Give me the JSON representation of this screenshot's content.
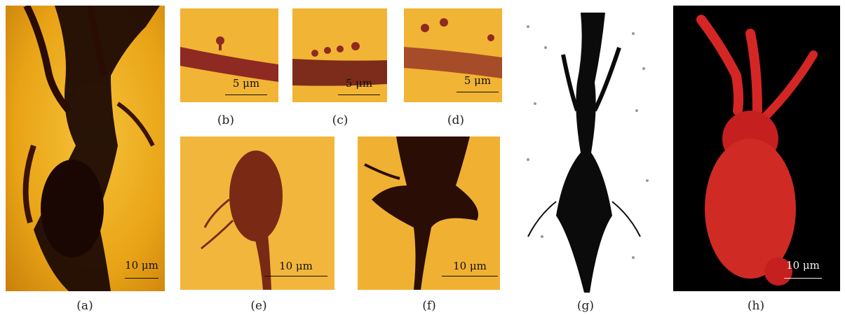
{
  "figure": {
    "panels": [
      {
        "id": "a",
        "caption": "(a)",
        "scale_label": "10 μm",
        "image": "Golgi-stained neuron, dark cell with branching dendrites on amber background"
      },
      {
        "id": "b",
        "caption": "(b)",
        "scale_label": "5 μm",
        "image": "Dendrite segment with spines"
      },
      {
        "id": "c",
        "caption": "(c)",
        "scale_label": "5 μm",
        "image": "Dendrite segment with spines"
      },
      {
        "id": "d",
        "caption": "(d)",
        "scale_label": "5 μm",
        "image": "Dendrite segment with spines"
      },
      {
        "id": "e",
        "caption": "(e)",
        "scale_label": "10 μm",
        "image": "Neuron soma with fine processes"
      },
      {
        "id": "f",
        "caption": "(f)",
        "scale_label": "10 μm",
        "image": "Dark neuron soma with dense processes"
      },
      {
        "id": "g",
        "caption": "(g)",
        "scale_label": "",
        "image": "Black-and-white drawing of neuron"
      },
      {
        "id": "h",
        "caption": "(h)",
        "scale_label": "10 μm",
        "image": "3D red reconstruction of neuron on black background"
      }
    ]
  }
}
